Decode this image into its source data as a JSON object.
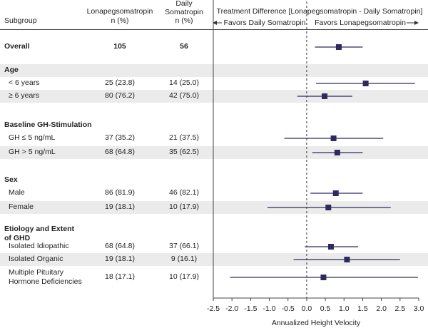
{
  "header": {
    "subgroup": "Subgroup",
    "lona": [
      "Lonapegsomatropin",
      "n (%)"
    ],
    "daily": [
      "Daily",
      "Somatropin",
      "n (%)"
    ],
    "treatment_title": "Treatment Difference [Lonapegsomatropin - Daily Somatropin]",
    "favors_left": "Favors Daily Somatropin",
    "favors_right": "Favors Lonapegsomatropin"
  },
  "colors": {
    "marker": "#2d2a5e",
    "band": "#ebebeb"
  },
  "chart_data": {
    "type": "forest",
    "xlabel": "Annualized Height Velocity",
    "xlim": [
      -2.5,
      3.0
    ],
    "xticks": [
      "-2.5",
      "-2.0",
      "-1.5",
      "-1.0",
      "-0.5",
      "0.0",
      "0.5",
      "1.0",
      "1.5",
      "2.0",
      "2.5",
      "3.0"
    ],
    "reference_line": 0.0,
    "rows": [
      {
        "kind": "row",
        "label": "Overall",
        "lona": "105",
        "daily": "56",
        "est": 0.86,
        "lo": 0.22,
        "hi": 1.5,
        "bold": true
      },
      {
        "kind": "section",
        "label": "Age"
      },
      {
        "kind": "row",
        "label": "< 6 years",
        "lona": "25 (23.8)",
        "daily": "14 (25.0)",
        "est": 1.58,
        "lo": 0.25,
        "hi": 2.9
      },
      {
        "kind": "row",
        "label": "≥ 6 years",
        "lona": "80 (76.2)",
        "daily": "42 (75.0)",
        "est": 0.48,
        "lo": -0.25,
        "hi": 1.22
      },
      {
        "kind": "section",
        "label": "Baseline GH-Stimulation"
      },
      {
        "kind": "row",
        "label": "GH ≤ 5 ng/mL",
        "lona": "37 (35.2)",
        "daily": "21 (37.5)",
        "est": 0.72,
        "lo": -0.6,
        "hi": 2.05
      },
      {
        "kind": "row",
        "label": "GH > 5 ng/mL",
        "lona": "68 (64.8)",
        "daily": "35 (62.5)",
        "est": 0.82,
        "lo": 0.15,
        "hi": 1.5
      },
      {
        "kind": "section",
        "label": "Sex"
      },
      {
        "kind": "row",
        "label": "Male",
        "lona": "86 (81.9)",
        "daily": "46 (82.1)",
        "est": 0.78,
        "lo": 0.1,
        "hi": 1.5
      },
      {
        "kind": "row",
        "label": "Female",
        "lona": "19 (18.1)",
        "daily": "10 (17.9)",
        "est": 0.58,
        "lo": -1.05,
        "hi": 2.25
      },
      {
        "kind": "section",
        "label": "Etiology and Extent of GHD"
      },
      {
        "kind": "row",
        "label": "Isolated Idiopathic",
        "lona": "68 (64.8)",
        "daily": "37 (66.1)",
        "est": 0.65,
        "lo": -0.05,
        "hi": 1.38
      },
      {
        "kind": "row",
        "label": "Isolated Organic",
        "lona": "19 (18.1)",
        "daily": "9 (16.1)",
        "est": 1.08,
        "lo": -0.35,
        "hi": 2.5
      },
      {
        "kind": "row",
        "label": "Multiple Pituitary Hormone Deficiencies",
        "lona": "18 (17.1)",
        "daily": "10 (17.9)",
        "est": 0.45,
        "lo": -2.05,
        "hi": 2.98
      }
    ]
  }
}
